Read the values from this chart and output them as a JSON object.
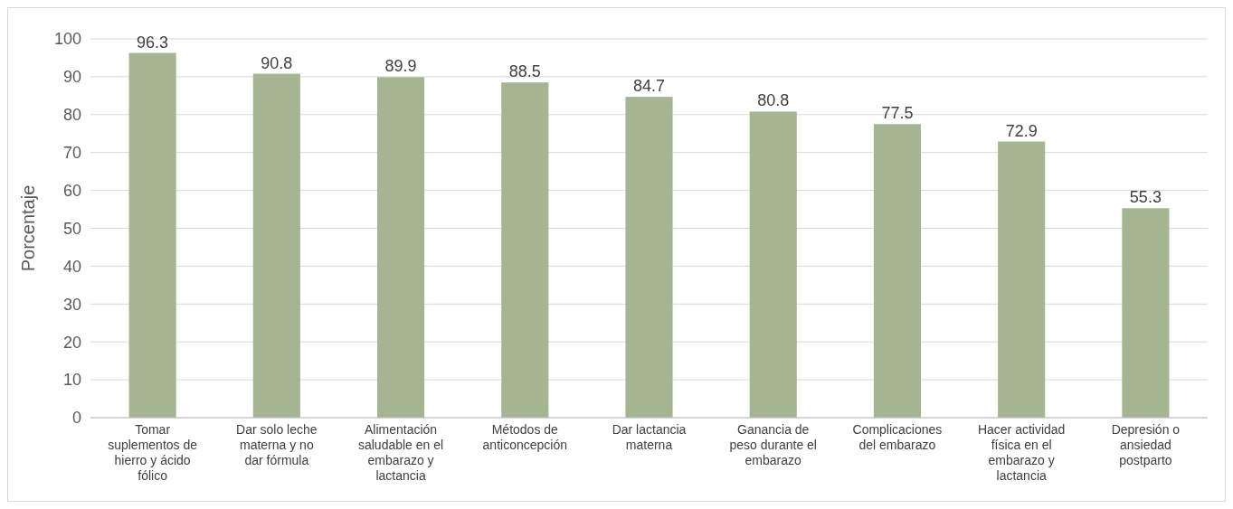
{
  "chart_data": {
    "type": "bar",
    "ylabel": "Porcentaje",
    "categories": [
      "Tomar suplementos de hierro y ácido fólico",
      "Dar solo leche materna y no dar fórmula",
      "Alimentación saludable en el embarazo y lactancia",
      "Métodos de anticoncepción",
      "Dar lactancia materna",
      "Ganancia de peso durante el embarazo",
      "Complicaciones del embarazo",
      "Hacer actividad física en el embarazo y lactancia",
      "Depresión o ansiedad postparto"
    ],
    "values": [
      96.3,
      90.8,
      89.9,
      88.5,
      84.7,
      80.8,
      77.5,
      72.9,
      55.3
    ],
    "color": "#a5b592",
    "ylim": [
      0,
      100
    ],
    "yticks": [
      0,
      10,
      20,
      30,
      40,
      50,
      60,
      70,
      80,
      90,
      100
    ],
    "grid": "y",
    "data_labels": true
  }
}
